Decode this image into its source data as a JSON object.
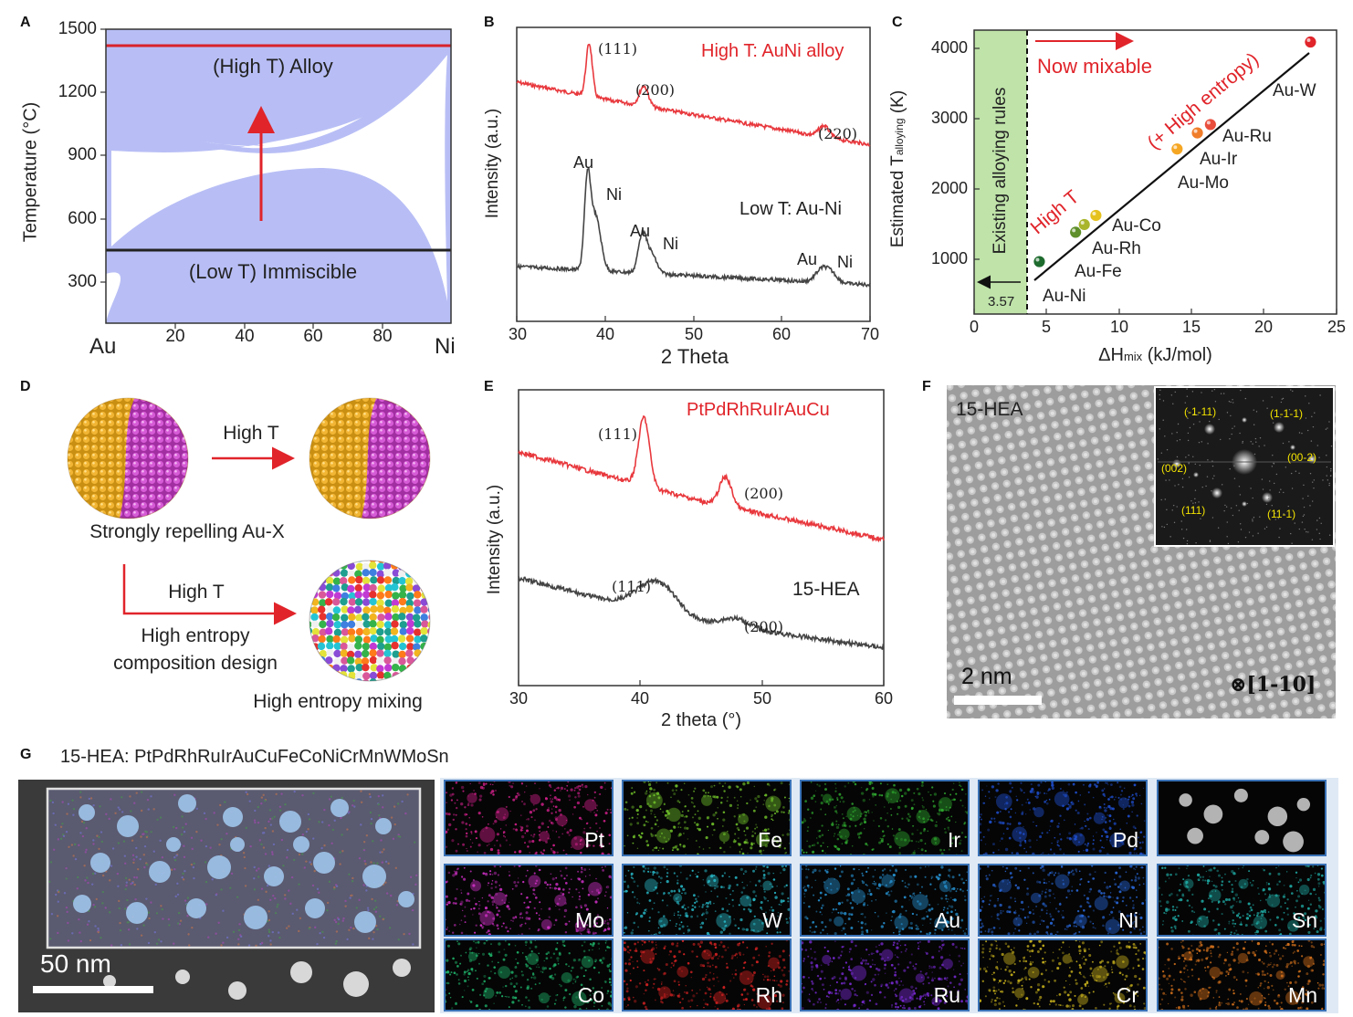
{
  "panels": {
    "A": {
      "label": "A",
      "ylabel": "Temperature (°C)",
      "yticks": [
        "300",
        "600",
        "900",
        "1200",
        "1500"
      ],
      "xticks": [
        "20",
        "40",
        "60",
        "80"
      ],
      "x_start": "Au",
      "x_end": "Ni",
      "high_label": "(High T) Alloy",
      "low_label": "(Low T) Immiscible"
    },
    "B": {
      "label": "B",
      "xlabel": "2 Theta",
      "ylabel": "Intensity (a.u.)",
      "xticks": [
        "30",
        "40",
        "50",
        "60",
        "70"
      ],
      "series_high": "High T: AuNi alloy",
      "series_low": "Low T: Au-Ni",
      "peaks_high": [
        "(111)",
        "(200)",
        "(220)"
      ],
      "peaks_low": [
        "Au",
        "Ni",
        "Au",
        "Ni",
        "Au",
        "Ni"
      ]
    },
    "C": {
      "label": "C",
      "xlabel": "ΔH",
      "xlabel_sub": "mix",
      "xlabel_unit": " (kJ/mol)",
      "ylabel": "Estimated T",
      "ylabel_sub": "alloying",
      "ylabel_unit": " (K)",
      "xticks": [
        "0",
        "5",
        "10",
        "15",
        "20",
        "25"
      ],
      "yticks": [
        "1000",
        "2000",
        "3000",
        "4000"
      ],
      "existing_rules": "Existing alloying rules",
      "threshold": "3.57",
      "now_mixable": "Now mixable",
      "high_t": "High T",
      "high_entropy": "(+ High entropy)",
      "points": [
        {
          "name": "Au-Ni",
          "x": 4.5,
          "y": 750,
          "color": "#1e6b2e"
        },
        {
          "name": "Au-Fe",
          "x": 7.0,
          "y": 1170,
          "color": "#5e8f2a"
        },
        {
          "name": "Au-Rh",
          "x": 7.6,
          "y": 1280,
          "color": "#a9b52b"
        },
        {
          "name": "Au-Co",
          "x": 8.4,
          "y": 1410,
          "color": "#e6c21f"
        },
        {
          "name": "Au-Mo",
          "x": 14.0,
          "y": 2360,
          "color": "#f5a623"
        },
        {
          "name": "Au-Ir",
          "x": 15.4,
          "y": 2590,
          "color": "#f07d2a"
        },
        {
          "name": "Au-Ru",
          "x": 16.3,
          "y": 2710,
          "color": "#e94e3c"
        },
        {
          "name": "Au-W",
          "x": 23.2,
          "y": 3890,
          "color": "#e0242a"
        }
      ]
    },
    "D": {
      "label": "D",
      "arrow1": "High T",
      "caption1": "Strongly repelling Au-X",
      "arrow2": "High T",
      "design_line1": "High entropy",
      "design_line2": "composition design",
      "caption2": "High entropy mixing"
    },
    "E": {
      "label": "E",
      "xlabel": "2 theta (°)",
      "ylabel": "Intensity (a.u.)",
      "xticks": [
        "30",
        "40",
        "50",
        "60"
      ],
      "series_high": "PtPdRhRuIrAuCu",
      "series_low": "15-HEA",
      "peaks_high": [
        "(111)",
        "(200)"
      ],
      "peaks_low": [
        "(111)",
        "(200)"
      ]
    },
    "F": {
      "label": "F",
      "sample": "15-HEA",
      "scale": "2 nm",
      "zone_axis": "⊗[1-10]",
      "fft_labels": [
        "(-1-11)",
        "(1-1-1)",
        "(002)",
        "(00-2)",
        "(111)",
        "(11-1)"
      ]
    },
    "G": {
      "label": "G",
      "title": "15-HEA: PtPdRhRuIrAuCuFeCoNiCrMnWMoSn",
      "scale": "50 nm",
      "maps": [
        {
          "el": "Pt",
          "color": "#d0208a"
        },
        {
          "el": "Fe",
          "color": "#6fbf2a"
        },
        {
          "el": "Ir",
          "color": "#2fa82f"
        },
        {
          "el": "Pd",
          "color": "#1f4fd0"
        },
        {
          "el": "",
          "color": "#bdbdbd"
        },
        {
          "el": "Mo",
          "color": "#d130c8"
        },
        {
          "el": "W",
          "color": "#27b5c4"
        },
        {
          "el": "Au",
          "color": "#2690cf"
        },
        {
          "el": "Ni",
          "color": "#2866d6"
        },
        {
          "el": "Sn",
          "color": "#1ea6a0"
        },
        {
          "el": "Co",
          "color": "#1fb36a"
        },
        {
          "el": "Rh",
          "color": "#d52222"
        },
        {
          "el": "Ru",
          "color": "#7a2bd6"
        },
        {
          "el": "Cr",
          "color": "#c9b21c"
        },
        {
          "el": "Mn",
          "color": "#d5721c"
        }
      ]
    }
  }
}
